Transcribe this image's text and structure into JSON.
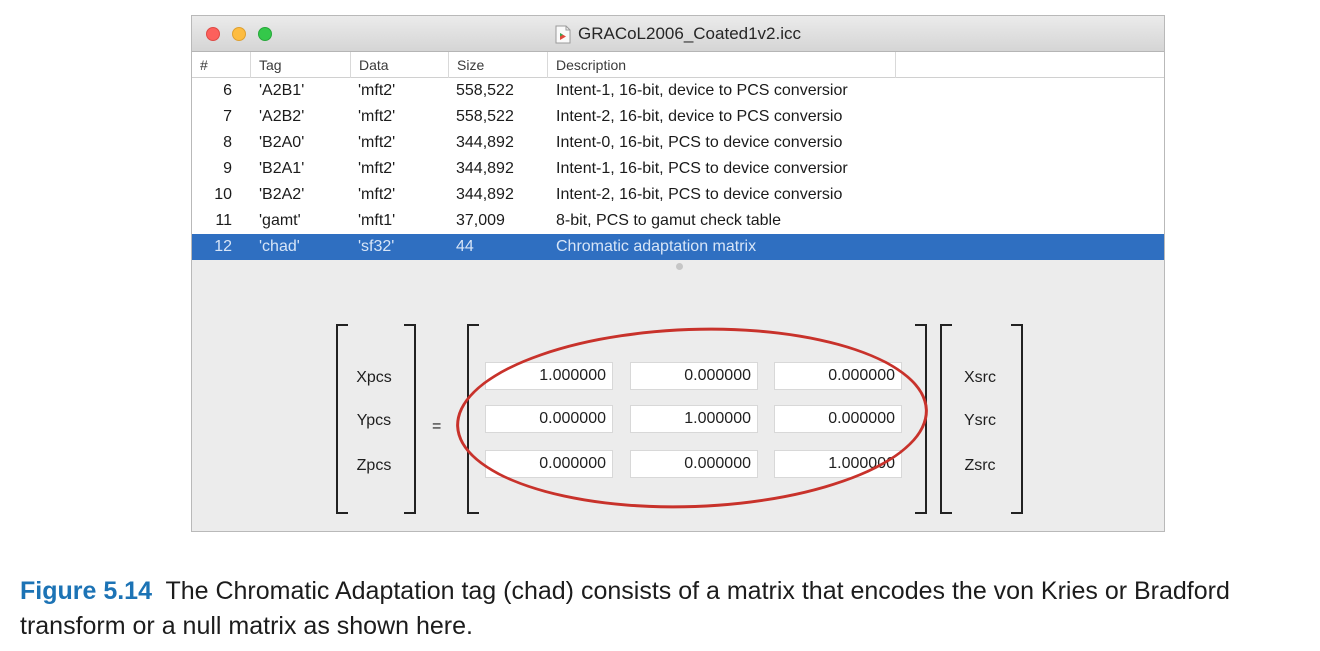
{
  "window": {
    "title": "GRACoL2006_Coated1v2.icc",
    "traffic_lights": [
      "close",
      "minimize",
      "zoom"
    ]
  },
  "table": {
    "headers": [
      "#",
      "Tag",
      "Data",
      "Size",
      "Description"
    ],
    "rows": [
      {
        "num": "6",
        "tag": "'A2B1'",
        "data": "'mft2'",
        "size": "558,522",
        "desc": "Intent-1, 16-bit, device to PCS conversior"
      },
      {
        "num": "7",
        "tag": "'A2B2'",
        "data": "'mft2'",
        "size": "558,522",
        "desc": "Intent-2, 16-bit, device to PCS conversio"
      },
      {
        "num": "8",
        "tag": "'B2A0'",
        "data": "'mft2'",
        "size": "344,892",
        "desc": "Intent-0, 16-bit, PCS to device conversio"
      },
      {
        "num": "9",
        "tag": "'B2A1'",
        "data": "'mft2'",
        "size": "344,892",
        "desc": "Intent-1, 16-bit, PCS to device conversior"
      },
      {
        "num": "10",
        "tag": "'B2A2'",
        "data": "'mft2'",
        "size": "344,892",
        "desc": "Intent-2, 16-bit, PCS to device conversio"
      },
      {
        "num": "11",
        "tag": "'gamt'",
        "data": "'mft1'",
        "size": "37,009",
        "desc": "8-bit, PCS to gamut check table"
      },
      {
        "num": "12",
        "tag": "'chad'",
        "data": "'sf32'",
        "size": "44",
        "desc": "Chromatic adaptation matrix"
      }
    ],
    "selected_row_index": 6
  },
  "matrix": {
    "pcs_labels": [
      "Xpcs",
      "Ypcs",
      "Zpcs"
    ],
    "equals": "=",
    "values": [
      [
        "1.000000",
        "0.000000",
        "0.000000"
      ],
      [
        "0.000000",
        "1.000000",
        "0.000000"
      ],
      [
        "0.000000",
        "0.000000",
        "1.000000"
      ]
    ],
    "src_labels": [
      "Xsrc",
      "Ysrc",
      "Zsrc"
    ]
  },
  "caption": {
    "label": "Figure 5.14",
    "text": "The Chromatic Adaptation tag (chad) consists of a matrix that encodes the von Kries or Bradford transform or a null matrix as shown here."
  },
  "colors": {
    "selection": "#2f6fc1",
    "annotation_ellipse": "#c8322b",
    "figure_label": "#1c73b5"
  }
}
